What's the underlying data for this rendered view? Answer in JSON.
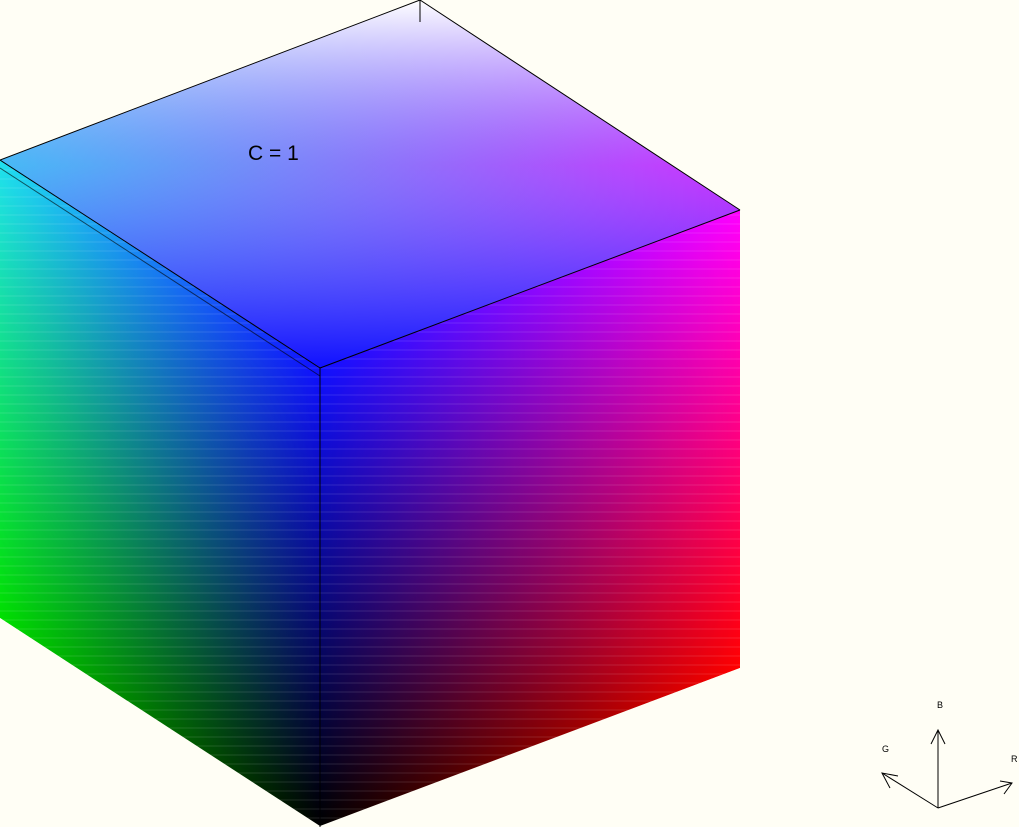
{
  "cube": {
    "label": "C = 1",
    "corner_colors": {
      "black": "#000000",
      "red": "#ff0000",
      "green": "#00e000",
      "blue": "#1010ff",
      "magenta": "#ff00ff",
      "cyan": "#20e0f0",
      "white": "#ffffff"
    }
  },
  "axes": {
    "r_label": "R",
    "g_label": "G",
    "b_label": "B"
  }
}
